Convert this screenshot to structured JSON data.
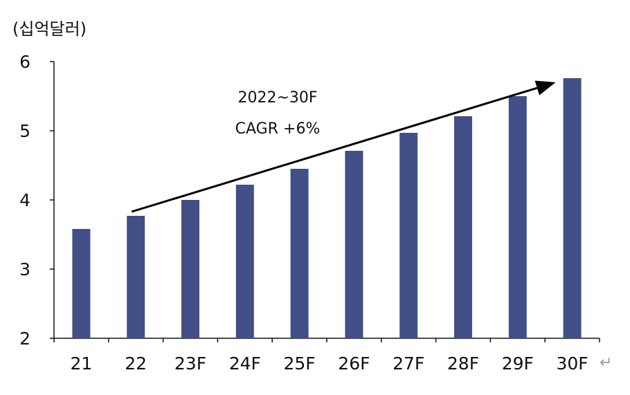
{
  "unit_label": "(십억달러)",
  "trailing_mark": "↵",
  "colors": {
    "bar": "#414f86",
    "axis": "#111111",
    "arrow": "#000000"
  },
  "chart_data": {
    "type": "bar",
    "categories": [
      "21",
      "22",
      "23F",
      "24F",
      "25F",
      "26F",
      "27F",
      "28F",
      "29F",
      "30F"
    ],
    "values": [
      3.58,
      3.77,
      4.0,
      4.22,
      4.45,
      4.71,
      4.97,
      5.21,
      5.5,
      5.76
    ],
    "ylim": [
      2,
      6
    ],
    "yticks": [
      2,
      3,
      4,
      5,
      6
    ],
    "grid": false,
    "annotation": {
      "line1": "2022~30F",
      "line2": "CAGR +6%",
      "arrow_from": {
        "category": "22",
        "value": 3.83
      },
      "arrow_to": {
        "category": "30F",
        "value": 5.76
      }
    }
  }
}
